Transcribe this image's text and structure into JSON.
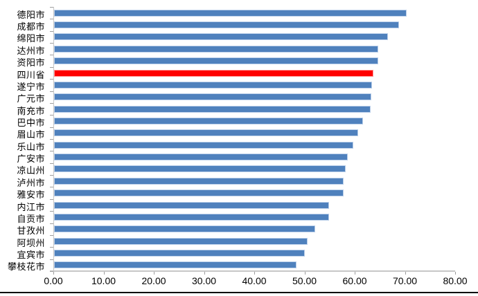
{
  "chart_data": {
    "type": "bar",
    "orientation": "horizontal",
    "title": "",
    "xlabel": "",
    "ylabel": "",
    "grid": "off",
    "legend": "none",
    "xlim": [
      0,
      80
    ],
    "x_tick_labels": [
      "0.00",
      "10.00",
      "20.00",
      "30.00",
      "40.00",
      "50.00",
      "60.00",
      "70.00",
      "80.00"
    ],
    "categories": [
      "德阳市",
      "成都市",
      "绵阳市",
      "达州市",
      "资阳市",
      "四川省",
      "遂宁市",
      "广元市",
      "南充市",
      "巴中市",
      "眉山市",
      "乐山市",
      "广安市",
      "凉山州",
      "泸州市",
      "雅安市",
      "内江市",
      "自贡市",
      "甘孜州",
      "阿坝州",
      "宜宾市",
      "攀枝花市"
    ],
    "values": [
      70.0,
      68.6,
      66.4,
      64.4,
      64.4,
      63.5,
      63.2,
      63.0,
      62.9,
      61.4,
      60.4,
      59.5,
      58.3,
      57.9,
      57.5,
      57.5,
      54.6,
      54.6,
      51.8,
      50.3,
      49.8,
      48.1
    ],
    "highlight": {
      "category": "四川省",
      "index": 5,
      "color": "#ff0000"
    },
    "colors": {
      "bar_fill": "#4f81bd",
      "bar_border": "#bcd0ea",
      "highlight_fill": "#ff0000",
      "highlight_border": "#ff9b9b",
      "axis_line": "#c6c6c6",
      "tick": "#9d9d9d",
      "text": "#000000",
      "background": "#ffffff",
      "bottom_rule": "#000000"
    }
  }
}
